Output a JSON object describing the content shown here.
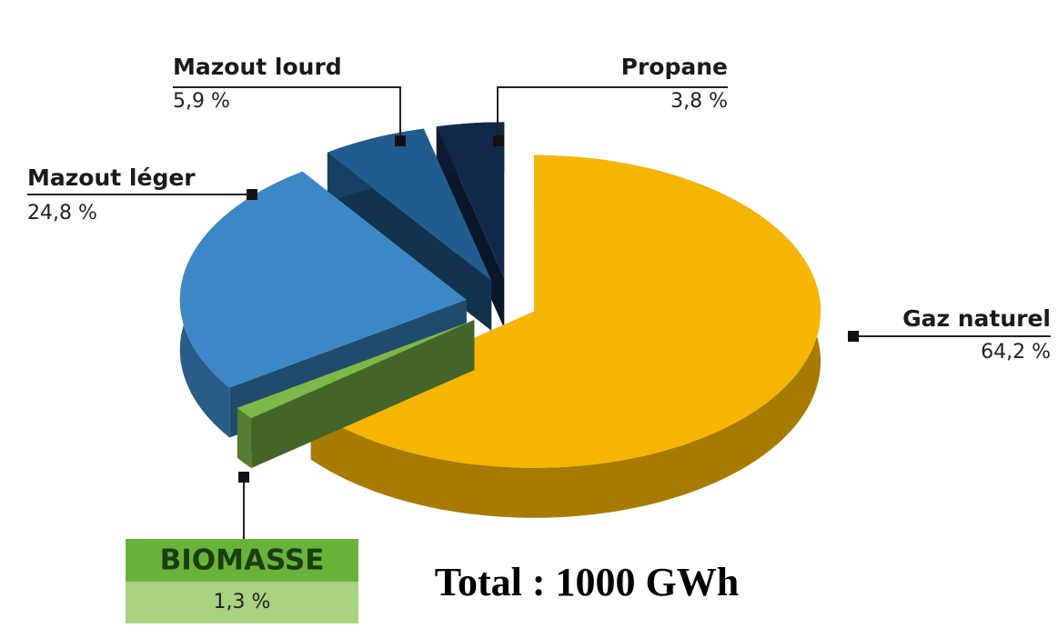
{
  "chart_data": {
    "type": "pie",
    "categories": [
      "Gaz naturel",
      "BIOMASSE",
      "Mazout léger",
      "Mazout lourd",
      "Propane"
    ],
    "values": [
      64.2,
      1.3,
      24.8,
      5.9,
      3.8
    ],
    "value_labels": [
      "64,2 %",
      "1,3 %",
      "24,8 %",
      "5,9 %",
      "3,8 %"
    ],
    "colors": [
      "#f6b500",
      "#7cb84a",
      "#3c88c6",
      "#205d8e",
      "#10294a"
    ],
    "annotation": "Total : 1000 GWh"
  }
}
